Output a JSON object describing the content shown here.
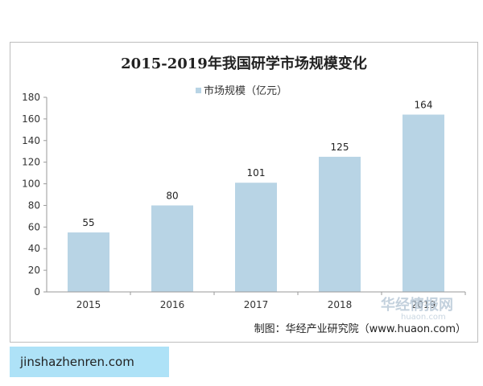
{
  "chart_data": {
    "type": "bar",
    "title": "2015-2019年我国研学市场规模变化",
    "series": [
      {
        "name": "市场规模（亿元）",
        "values": [
          55,
          80,
          101,
          125,
          164
        ],
        "color": "#b8d4e5"
      }
    ],
    "categories": [
      "2015",
      "2016",
      "2017",
      "2018",
      "2019"
    ],
    "data_labels": [
      "55",
      "80",
      "101",
      "125",
      "164"
    ],
    "ylim": [
      0,
      180
    ],
    "yticks": [
      0,
      20,
      40,
      60,
      80,
      100,
      120,
      140,
      160,
      180
    ],
    "xlabel": "",
    "ylabel": "",
    "grid": false,
    "legend_position": "top"
  },
  "source": "制图：华经产业研究院（www.huaon.com）",
  "watermark": {
    "cn": "华经情报网",
    "en": "huaon.com"
  },
  "badge": "jinshazhenren.com"
}
